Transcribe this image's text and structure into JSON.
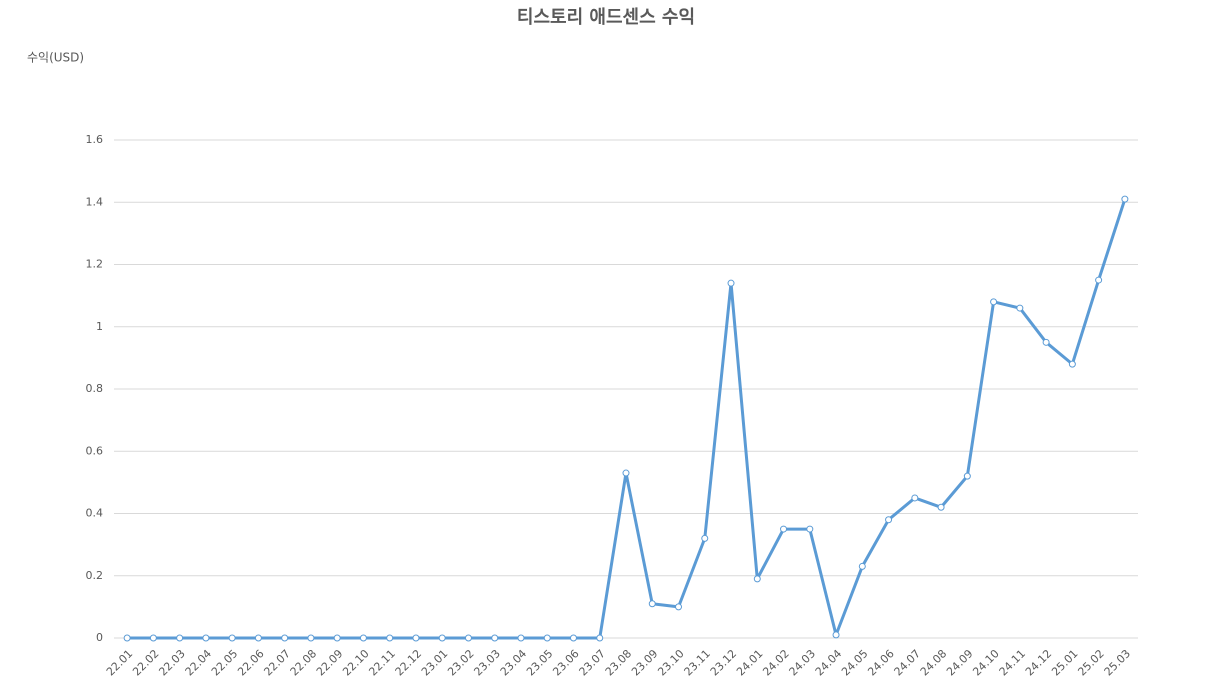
{
  "chart_data": {
    "type": "line",
    "title": "티스토리 애드센스 수익",
    "y_label": "수익(USD)",
    "categories": [
      "22.01",
      "22.02",
      "22.03",
      "22.04",
      "22.05",
      "22.06",
      "22.07",
      "22.08",
      "22.09",
      "22.10",
      "22.11",
      "22.12",
      "23.01",
      "23.02",
      "23.03",
      "23.04",
      "23.05",
      "23.06",
      "23.07",
      "23.08",
      "23.09",
      "23.10",
      "23.11",
      "23.12",
      "24.01",
      "24.02",
      "24.03",
      "24.04",
      "24.05",
      "24.06",
      "24.07",
      "24.08",
      "24.09",
      "24.10",
      "24.11",
      "24.12",
      "25.01",
      "25.02",
      "25.03"
    ],
    "series": [
      {
        "name": "수익",
        "color": "#5b9bd5",
        "values": [
          0,
          0,
          0,
          0,
          0,
          0,
          0,
          0,
          0,
          0,
          0,
          0,
          0,
          0,
          0,
          0,
          0,
          0,
          0,
          0.53,
          0.11,
          0.1,
          0.32,
          1.14,
          0.19,
          0.35,
          0.35,
          0.01,
          0.23,
          0.38,
          0.45,
          0.42,
          0.52,
          1.08,
          1.06,
          0.95,
          0.88,
          1.15,
          1.41
        ]
      }
    ],
    "ylim": [
      0,
      1.6
    ],
    "yticks": [
      0,
      0.2,
      0.4,
      0.6,
      0.8,
      1,
      1.2,
      1.4,
      1.6
    ],
    "grid": true
  }
}
